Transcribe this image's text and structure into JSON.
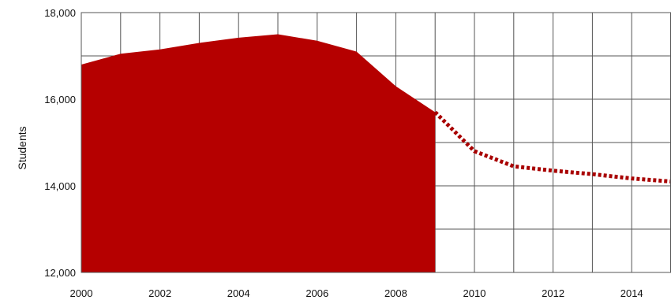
{
  "chart_data": {
    "type": "area",
    "title": "",
    "xlabel": "",
    "ylabel": "Students",
    "xlim": [
      2000,
      2015
    ],
    "ylim": [
      12000,
      18000
    ],
    "grid": true,
    "legend": "none",
    "x_ticks": [
      2000,
      2002,
      2004,
      2006,
      2008,
      2010,
      2012,
      2014
    ],
    "x_tick_labels": [
      "2000",
      "2002",
      "2004",
      "2006",
      "2008",
      "2010",
      "2012",
      "2014"
    ],
    "y_ticks": [
      12000,
      14000,
      16000,
      18000
    ],
    "y_tick_labels": [
      "12,000",
      "14,000",
      "16,000",
      "18,000"
    ],
    "series": [
      {
        "style": "filled-area",
        "color": "#b50000",
        "x": [
          2000,
          2001,
          2002,
          2003,
          2004,
          2005,
          2006,
          2007,
          2008,
          2009
        ],
        "y": [
          16800,
          17050,
          17150,
          17300,
          17420,
          17500,
          17350,
          17100,
          16300,
          15700
        ]
      },
      {
        "style": "dotted-line",
        "color": "#a80000",
        "x": [
          2009,
          2010,
          2011,
          2012,
          2013,
          2014,
          2015
        ],
        "y": [
          15700,
          14800,
          14450,
          14350,
          14270,
          14170,
          14100
        ]
      }
    ]
  }
}
